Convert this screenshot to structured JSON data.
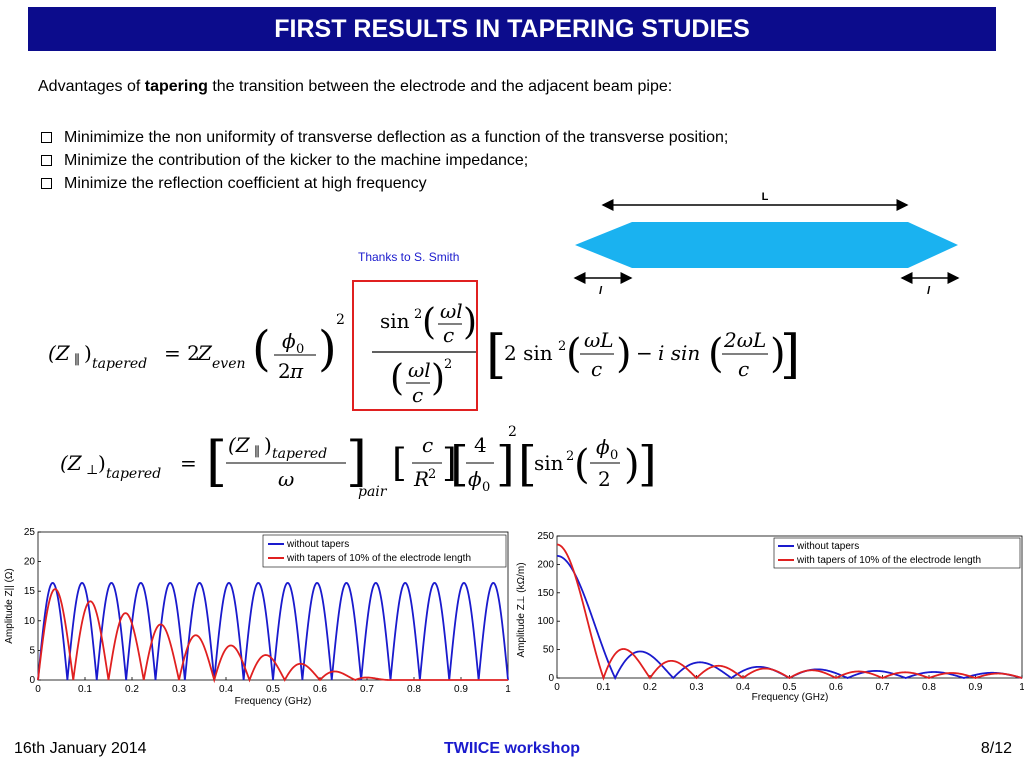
{
  "header": {
    "title": "FIRST RESULTS IN TAPERING STUDIES"
  },
  "intro": {
    "prefix": "Advantages of ",
    "bold": "tapering",
    "suffix": " the transition between the electrode and the adjacent beam pipe:"
  },
  "bullets": [
    "Minimimize the non uniformity of transverse deflection as a function of the transverse position;",
    "Minimize the contribution of the kicker to the machine impedance;",
    "Minimize the reflection coefficient at high frequency"
  ],
  "taper_diagram": {
    "length_label": "L",
    "taper_label_left": "l",
    "taper_label_right": "l",
    "fill_color": "#1ab2f0"
  },
  "credit": "Thanks to S. Smith",
  "highlight_color": "#e02020",
  "chart_data": [
    {
      "type": "line",
      "xlabel": "Frequency (GHz)",
      "ylabel": "Amplitude Z|| (Ω)",
      "xlim": [
        0,
        1
      ],
      "ylim": [
        0,
        25
      ],
      "xticks": [
        "0",
        "0.1",
        "0.2",
        "0.3",
        "0.4",
        "0.5",
        "0.6",
        "0.7",
        "0.8",
        "0.9",
        "1"
      ],
      "yticks": [
        "0",
        "5",
        "10",
        "15",
        "20",
        "25"
      ],
      "legend_position": "top-right",
      "series": [
        {
          "name": "without tapers",
          "color": "#1a1acd",
          "peak": 16.4,
          "period": 0.0625,
          "decay": 0
        },
        {
          "name": "with tapers of 10% of the electrode length",
          "color": "#e02020",
          "peak": 16.4,
          "period": 0.075,
          "decay": 0.2
        }
      ]
    },
    {
      "type": "line",
      "xlabel": "Frequency (GHz)",
      "ylabel": "Amplitude Z⊥ (kΩ/m)",
      "xlim": [
        0,
        1
      ],
      "ylim": [
        0,
        250
      ],
      "xticks": [
        "0",
        "0.1",
        "0.2",
        "0.3",
        "0.4",
        "0.5",
        "0.6",
        "0.7",
        "0.8",
        "0.9",
        "1"
      ],
      "yticks": [
        "0",
        "50",
        "100",
        "150",
        "200",
        "250"
      ],
      "legend_position": "top-right",
      "series": [
        {
          "name": "without tapers",
          "color": "#1a1acd",
          "peak": 215,
          "period": 0.125
        },
        {
          "name": "with tapers of 10% of the electrode length",
          "color": "#e02020",
          "peak": 235,
          "period": 0.1
        }
      ]
    }
  ],
  "footer": {
    "date": "16th January 2014",
    "event": "TWIICE workshop",
    "page": "8/12"
  }
}
